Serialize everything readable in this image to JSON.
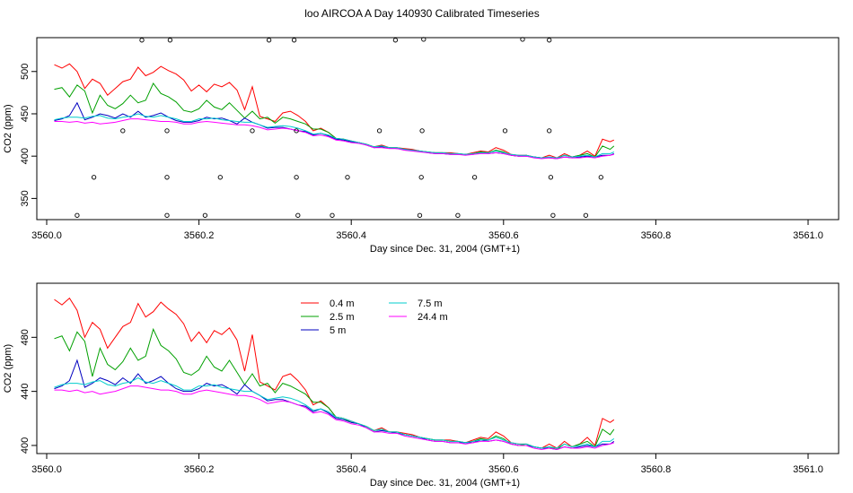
{
  "title": "loo AIRCOA A  Day 140930  Calibrated Timeseries",
  "chart_data": [
    {
      "type": "scatter",
      "xlabel": "Day since Dec. 31, 2004 (GMT+1)",
      "ylabel": "CO2 (ppm)",
      "xlim": [
        3560.0,
        3561.0
      ],
      "ylim": [
        325,
        540
      ],
      "xticks": [
        "3560.0",
        "3560.2",
        "3560.4",
        "3560.6",
        "3560.8",
        "3561.0"
      ],
      "xtick_values": [
        3560.0,
        3560.2,
        3560.4,
        3560.6,
        3560.8,
        3561.0
      ],
      "yticks": [
        "350",
        "400",
        "450",
        "500"
      ],
      "ytick_values": [
        350,
        400,
        450,
        500
      ],
      "x": [
        3560.0,
        3560.01,
        3560.02,
        3560.03,
        3560.04,
        3560.05,
        3560.06,
        3560.07,
        3560.08,
        3560.09,
        3560.1,
        3560.11,
        3560.12,
        3560.13,
        3560.14,
        3560.15,
        3560.16,
        3560.17,
        3560.18,
        3560.19,
        3560.2,
        3560.21,
        3560.22,
        3560.23,
        3560.24,
        3560.25,
        3560.26,
        3560.27,
        3560.28,
        3560.29,
        3560.3,
        3560.31,
        3560.32,
        3560.33,
        3560.34,
        3560.35,
        3560.36,
        3560.37,
        3560.38,
        3560.39,
        3560.4,
        3560.41,
        3560.42,
        3560.43,
        3560.44,
        3560.45,
        3560.46,
        3560.47,
        3560.48,
        3560.49,
        3560.5,
        3560.51,
        3560.52,
        3560.53,
        3560.54,
        3560.55,
        3560.56,
        3560.57,
        3560.58,
        3560.59,
        3560.6,
        3560.61,
        3560.62,
        3560.63,
        3560.64,
        3560.65,
        3560.66,
        3560.67,
        3560.68,
        3560.69,
        3560.7,
        3560.71,
        3560.72,
        3560.73,
        3560.74,
        3560.745
      ],
      "series": [
        {
          "color": "#ff0000",
          "values": [
            null,
            508,
            504,
            509,
            500,
            480,
            491,
            486,
            472,
            480,
            488,
            491,
            505,
            495,
            499,
            506,
            501,
            497,
            490,
            477,
            484,
            476,
            485,
            482,
            487,
            478,
            455,
            482,
            447,
            444,
            441,
            451,
            453,
            448,
            441,
            430,
            433,
            428,
            421,
            420,
            418,
            416,
            414,
            411,
            413,
            410,
            410,
            409,
            408,
            406,
            405,
            404,
            404,
            404,
            403,
            402,
            404,
            406,
            405,
            410,
            407,
            402,
            401,
            401,
            399,
            398,
            401,
            398,
            403,
            399,
            401,
            406,
            400,
            420,
            417,
            419
          ]
        },
        {
          "color": "#00a000",
          "values": [
            null,
            479,
            481,
            470,
            484,
            477,
            451,
            472,
            460,
            456,
            462,
            472,
            463,
            466,
            486,
            474,
            470,
            464,
            454,
            452,
            456,
            466,
            458,
            455,
            463,
            454,
            445,
            453,
            444,
            446,
            439,
            446,
            444,
            441,
            438,
            432,
            432,
            428,
            421,
            420,
            417,
            416,
            414,
            411,
            412,
            410,
            410,
            408,
            407,
            406,
            405,
            404,
            404,
            403,
            403,
            402,
            403,
            405,
            404,
            407,
            405,
            401,
            400,
            401,
            399,
            398,
            399,
            397,
            401,
            399,
            401,
            403,
            399,
            412,
            408,
            412
          ]
        },
        {
          "color": "#0000c0",
          "values": [
            null,
            442,
            444,
            448,
            463,
            443,
            446,
            450,
            448,
            445,
            450,
            446,
            453,
            446,
            448,
            451,
            446,
            442,
            440,
            440,
            442,
            446,
            444,
            445,
            442,
            438,
            445,
            440,
            437,
            433,
            434,
            434,
            432,
            430,
            429,
            425,
            427,
            424,
            420,
            419,
            417,
            416,
            413,
            410,
            411,
            410,
            409,
            408,
            407,
            406,
            404,
            403,
            403,
            402,
            402,
            402,
            402,
            404,
            403,
            404,
            403,
            401,
            400,
            400,
            399,
            398,
            398,
            397,
            399,
            398,
            399,
            400,
            399,
            401,
            401,
            403
          ]
        },
        {
          "color": "#00cccc",
          "values": [
            null,
            443,
            445,
            446,
            446,
            445,
            447,
            448,
            445,
            444,
            446,
            447,
            450,
            447,
            446,
            448,
            446,
            444,
            441,
            441,
            444,
            444,
            445,
            443,
            442,
            441,
            440,
            440,
            437,
            434,
            435,
            436,
            435,
            433,
            430,
            426,
            427,
            425,
            421,
            420,
            418,
            416,
            414,
            411,
            412,
            410,
            410,
            408,
            407,
            406,
            405,
            404,
            404,
            403,
            403,
            402,
            403,
            404,
            404,
            406,
            404,
            402,
            401,
            401,
            399,
            398,
            399,
            398,
            401,
            399,
            400,
            401,
            399,
            403,
            403,
            405
          ]
        },
        {
          "color": "#ff00ff",
          "values": [
            null,
            441,
            441,
            440,
            441,
            439,
            440,
            438,
            439,
            440,
            442,
            444,
            444,
            443,
            442,
            441,
            441,
            440,
            438,
            438,
            440,
            441,
            440,
            439,
            438,
            437,
            437,
            436,
            434,
            431,
            432,
            433,
            432,
            430,
            428,
            424,
            425,
            423,
            419,
            418,
            416,
            415,
            413,
            410,
            410,
            409,
            409,
            407,
            406,
            405,
            404,
            403,
            403,
            402,
            402,
            401,
            402,
            403,
            403,
            404,
            403,
            401,
            400,
            400,
            398,
            397,
            398,
            397,
            399,
            398,
            398,
            399,
            398,
            400,
            401,
            402
          ]
        }
      ],
      "points": [
        {
          "x": 3560.125,
          "y": 537
        },
        {
          "x": 3560.162,
          "y": 537
        },
        {
          "x": 3560.292,
          "y": 537
        },
        {
          "x": 3560.325,
          "y": 537
        },
        {
          "x": 3560.458,
          "y": 537
        },
        {
          "x": 3560.495,
          "y": 538
        },
        {
          "x": 3560.625,
          "y": 538
        },
        {
          "x": 3560.66,
          "y": 537
        },
        {
          "x": 3560.1,
          "y": 430
        },
        {
          "x": 3560.158,
          "y": 430
        },
        {
          "x": 3560.27,
          "y": 430
        },
        {
          "x": 3560.328,
          "y": 430
        },
        {
          "x": 3560.437,
          "y": 430
        },
        {
          "x": 3560.493,
          "y": 430
        },
        {
          "x": 3560.602,
          "y": 430
        },
        {
          "x": 3560.66,
          "y": 430
        },
        {
          "x": 3560.062,
          "y": 375
        },
        {
          "x": 3560.158,
          "y": 375
        },
        {
          "x": 3560.228,
          "y": 375
        },
        {
          "x": 3560.328,
          "y": 375
        },
        {
          "x": 3560.395,
          "y": 375
        },
        {
          "x": 3560.492,
          "y": 375
        },
        {
          "x": 3560.562,
          "y": 375
        },
        {
          "x": 3560.662,
          "y": 375
        },
        {
          "x": 3560.728,
          "y": 375
        },
        {
          "x": 3560.04,
          "y": 330
        },
        {
          "x": 3560.158,
          "y": 330
        },
        {
          "x": 3560.208,
          "y": 330
        },
        {
          "x": 3560.33,
          "y": 330
        },
        {
          "x": 3560.375,
          "y": 330
        },
        {
          "x": 3560.49,
          "y": 330
        },
        {
          "x": 3560.54,
          "y": 330
        },
        {
          "x": 3560.665,
          "y": 330
        },
        {
          "x": 3560.708,
          "y": 330
        }
      ],
      "grid": false,
      "legend": "none"
    },
    {
      "type": "line",
      "xlabel": "Day since Dec. 31, 2004 (GMT+1)",
      "ylabel": "CO2 (ppm)",
      "xlim": [
        3560.0,
        3561.0
      ],
      "ylim": [
        394,
        520
      ],
      "xticks": [
        "3560.0",
        "3560.2",
        "3560.4",
        "3560.6",
        "3560.8",
        "3561.0"
      ],
      "xtick_values": [
        3560.0,
        3560.2,
        3560.4,
        3560.6,
        3560.8,
        3561.0
      ],
      "yticks": [
        "400",
        "440",
        "480"
      ],
      "ytick_values": [
        400,
        440,
        480
      ],
      "legend": "top-left",
      "legend_entries": [
        {
          "label": "0.4 m",
          "color": "#ff0000"
        },
        {
          "label": "2.5 m",
          "color": "#00a000"
        },
        {
          "label": "5 m",
          "color": "#0000c0"
        },
        {
          "label": "7.5 m",
          "color": "#00cccc"
        },
        {
          "label": "24.4 m",
          "color": "#ff00ff"
        }
      ],
      "grid": false
    }
  ]
}
